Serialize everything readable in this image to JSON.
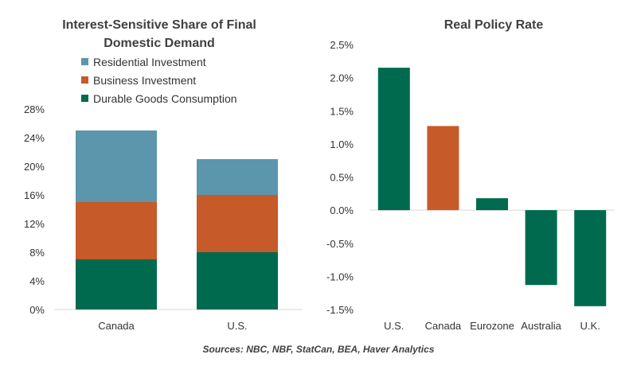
{
  "colors": {
    "residential": "#5B96AC",
    "business": "#C65A28",
    "durable": "#006A4E",
    "canada": "#C65A28",
    "other": "#006A4E"
  },
  "chart_data": [
    {
      "type": "bar",
      "stacked": true,
      "title": "Interest-Sensitive Share of Final Domestic Demand",
      "categories": [
        "Canada",
        "U.S."
      ],
      "series": [
        {
          "name": "Durable Goods Consumption",
          "values": [
            7,
            8
          ],
          "color_key": "durable"
        },
        {
          "name": "Business Investment",
          "values": [
            8,
            8
          ],
          "color_key": "business"
        },
        {
          "name": "Residential Investment",
          "values": [
            10,
            5
          ],
          "color_key": "residential"
        }
      ],
      "legend_order": [
        "Residential Investment",
        "Business Investment",
        "Durable Goods Consumption"
      ],
      "y_unit": "%",
      "ylim": [
        0,
        28
      ],
      "yticks": [
        "0%",
        "4%",
        "8%",
        "12%",
        "16%",
        "20%",
        "24%",
        "28%"
      ],
      "legend_position": "top-left",
      "grid": false
    },
    {
      "type": "bar",
      "title": "Real Policy Rate",
      "categories": [
        "U.S.",
        "Canada",
        "Eurozone",
        "Australia",
        "U.K."
      ],
      "values": [
        2.15,
        1.27,
        0.18,
        -1.13,
        -1.45
      ],
      "highlight": "Canada",
      "y_unit": "%",
      "ylim": [
        -1.5,
        2.5
      ],
      "yticks": [
        "-1.5%",
        "-1.0%",
        "-0.5%",
        "0.0%",
        "0.5%",
        "1.0%",
        "1.5%",
        "2.0%",
        "2.5%"
      ],
      "grid": false
    }
  ],
  "source": "Sources: NBC, NBF, StatCan, BEA, Haver Analytics"
}
